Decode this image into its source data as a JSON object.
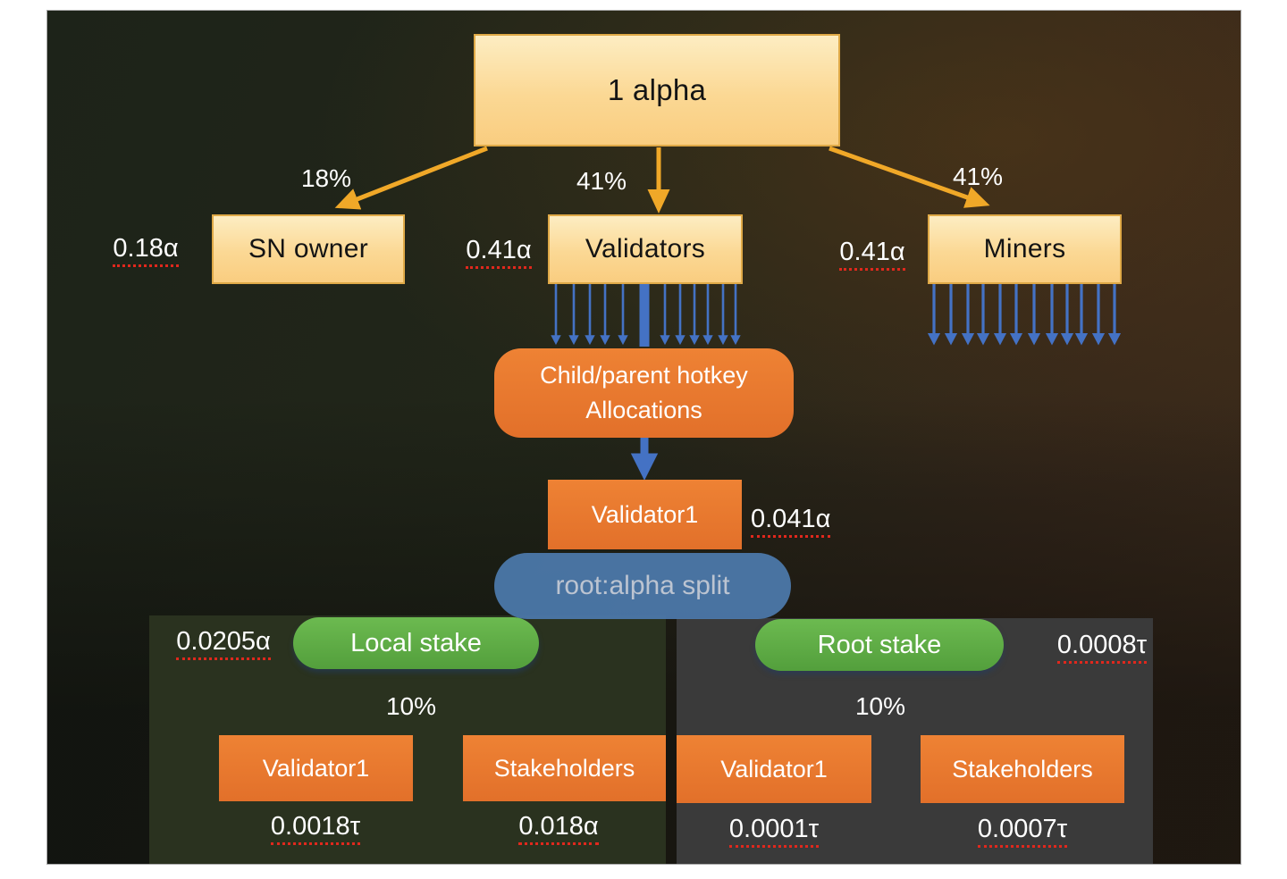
{
  "flow": {
    "source": {
      "label": "1 alpha"
    },
    "branches": [
      {
        "label": "SN owner",
        "percent": "18%",
        "amount": "0.18α"
      },
      {
        "label": "Validators",
        "percent": "41%",
        "amount": "0.41α"
      },
      {
        "label": "Miners",
        "percent": "41%",
        "amount": "0.41α"
      }
    ],
    "hotkey": {
      "line1": "Child/parent hotkey",
      "line2": "Allocations"
    },
    "validator1": {
      "label": "Validator1",
      "amount": "0.041α"
    },
    "split": {
      "label": "root:alpha split"
    },
    "panels": {
      "local": {
        "title": "Local stake",
        "amount": "0.0205α",
        "percent": "10%",
        "children": [
          {
            "label": "Validator1",
            "amount": "0.0018τ"
          },
          {
            "label": "Stakeholders",
            "amount": "0.018α"
          }
        ]
      },
      "root": {
        "title": "Root stake",
        "amount": "0.0008τ",
        "percent": "10%",
        "children": [
          {
            "label": "Validator1",
            "amount": "0.0001τ"
          },
          {
            "label": "Stakeholders",
            "amount": "0.0007τ"
          }
        ]
      }
    }
  },
  "colors": {
    "yellow_box": "#fbd88f",
    "orange_box": "#e8772e",
    "green_pill": "#5cad45",
    "blue_pill": "#4c7aac",
    "arrow_yellow": "#f0a828",
    "arrow_blue": "#4472c4",
    "underline_red": "#e0281d"
  }
}
